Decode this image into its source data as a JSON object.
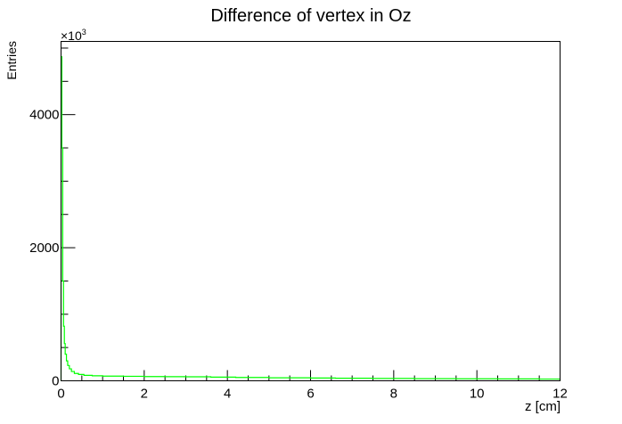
{
  "chart_data": {
    "type": "line",
    "title": "Difference of vertex in Oz",
    "xlabel": "z [cm]",
    "ylabel": "Entries",
    "y_multiplier_label": "×10",
    "y_multiplier_exponent": "3",
    "xlim": [
      0,
      12
    ],
    "ylim": [
      0,
      5100
    ],
    "x_ticks": [
      0,
      2,
      4,
      6,
      8,
      10,
      12
    ],
    "y_ticks": [
      0,
      2000,
      4000
    ],
    "grid": false,
    "legend": "none",
    "series": [
      {
        "color": "#00ff00",
        "bins": [
          {
            "x0": 0.0,
            "x1": 0.02,
            "y": 4870
          },
          {
            "x0": 0.02,
            "x1": 0.04,
            "y": 3500
          },
          {
            "x0": 0.04,
            "x1": 0.06,
            "y": 1500
          },
          {
            "x0": 0.06,
            "x1": 0.08,
            "y": 820
          },
          {
            "x0": 0.08,
            "x1": 0.1,
            "y": 560
          },
          {
            "x0": 0.1,
            "x1": 0.13,
            "y": 400
          },
          {
            "x0": 0.13,
            "x1": 0.16,
            "y": 300
          },
          {
            "x0": 0.16,
            "x1": 0.2,
            "y": 230
          },
          {
            "x0": 0.2,
            "x1": 0.25,
            "y": 180
          },
          {
            "x0": 0.25,
            "x1": 0.32,
            "y": 140
          },
          {
            "x0": 0.32,
            "x1": 0.42,
            "y": 110
          },
          {
            "x0": 0.42,
            "x1": 0.55,
            "y": 95
          },
          {
            "x0": 0.55,
            "x1": 0.75,
            "y": 82
          },
          {
            "x0": 0.75,
            "x1": 1.0,
            "y": 75
          },
          {
            "x0": 1.0,
            "x1": 1.5,
            "y": 70
          },
          {
            "x0": 1.5,
            "x1": 2.0,
            "y": 68
          },
          {
            "x0": 2.0,
            "x1": 2.5,
            "y": 64
          },
          {
            "x0": 2.5,
            "x1": 3.0,
            "y": 62
          },
          {
            "x0": 3.0,
            "x1": 3.6,
            "y": 60
          },
          {
            "x0": 3.6,
            "x1": 4.2,
            "y": 55
          },
          {
            "x0": 4.2,
            "x1": 5.0,
            "y": 50
          },
          {
            "x0": 5.0,
            "x1": 6.0,
            "y": 45
          },
          {
            "x0": 6.0,
            "x1": 6.6,
            "y": 42
          },
          {
            "x0": 6.6,
            "x1": 7.5,
            "y": 38
          },
          {
            "x0": 7.5,
            "x1": 8.5,
            "y": 35
          },
          {
            "x0": 8.5,
            "x1": 9.5,
            "y": 32
          },
          {
            "x0": 9.5,
            "x1": 10.5,
            "y": 30
          },
          {
            "x0": 10.5,
            "x1": 11.5,
            "y": 28
          },
          {
            "x0": 11.5,
            "x1": 12.0,
            "y": 26
          }
        ]
      }
    ]
  }
}
